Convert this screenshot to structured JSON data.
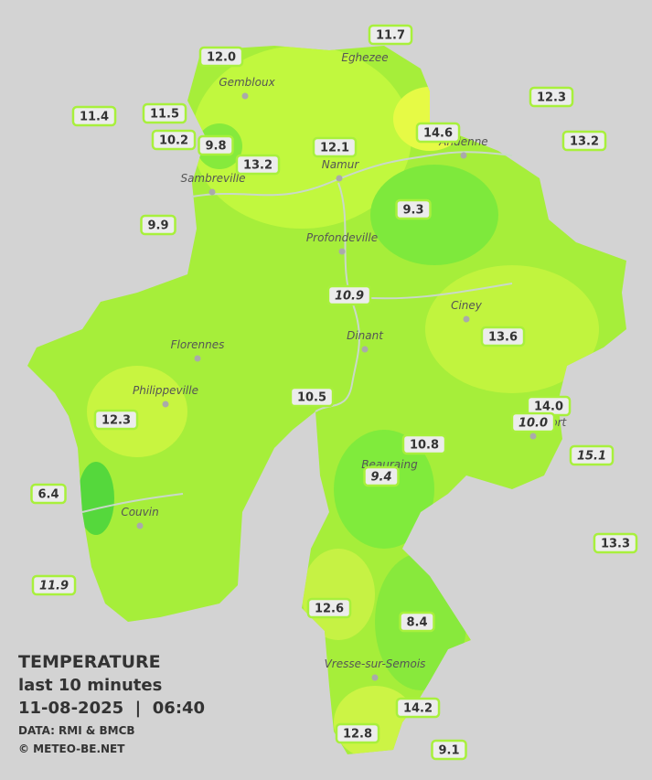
{
  "title": {
    "heading": "TEMPERATURE",
    "period": "last 10 minutes",
    "datetime": "11-08-2025  |  06:40",
    "source": "DATA: RMI & BMCB",
    "credit": "© METEO-BE.NET"
  },
  "towns": [
    "Eghezee",
    "Gembloux",
    "Andenne",
    "Namur",
    "Sambreville",
    "Profondeville",
    "Ciney",
    "Florennes",
    "Dinant",
    "Philippeville",
    "Rochefort",
    "Beauraing",
    "Couvin",
    "Vresse-sur-Semois"
  ],
  "stations": [
    {
      "label": "11.7",
      "italic": false
    },
    {
      "label": "12.0",
      "italic": false
    },
    {
      "label": "12.3",
      "italic": false
    },
    {
      "label": "11.4",
      "italic": false
    },
    {
      "label": "11.5",
      "italic": false
    },
    {
      "label": "14.6",
      "italic": false
    },
    {
      "label": "10.2",
      "italic": false
    },
    {
      "label": "9.8",
      "italic": false
    },
    {
      "label": "12.1",
      "italic": false
    },
    {
      "label": "13.2",
      "italic": false
    },
    {
      "label": "13.2",
      "italic": false
    },
    {
      "label": "9.3",
      "italic": false
    },
    {
      "label": "9.9",
      "italic": false
    },
    {
      "label": "10.9",
      "italic": true
    },
    {
      "label": "13.6",
      "italic": false
    },
    {
      "label": "10.5",
      "italic": false
    },
    {
      "label": "14.0",
      "italic": false
    },
    {
      "label": "10.0",
      "italic": true
    },
    {
      "label": "12.3",
      "italic": false
    },
    {
      "label": "10.8",
      "italic": false
    },
    {
      "label": "15.1",
      "italic": true
    },
    {
      "label": "9.4",
      "italic": true
    },
    {
      "label": "6.4",
      "italic": false
    },
    {
      "label": "13.3",
      "italic": false
    },
    {
      "label": "11.9",
      "italic": true
    },
    {
      "label": "12.6",
      "italic": false
    },
    {
      "label": "8.4",
      "italic": false
    },
    {
      "label": "14.2",
      "italic": false
    },
    {
      "label": "12.8",
      "italic": false
    },
    {
      "label": "9.1",
      "italic": false
    }
  ]
}
